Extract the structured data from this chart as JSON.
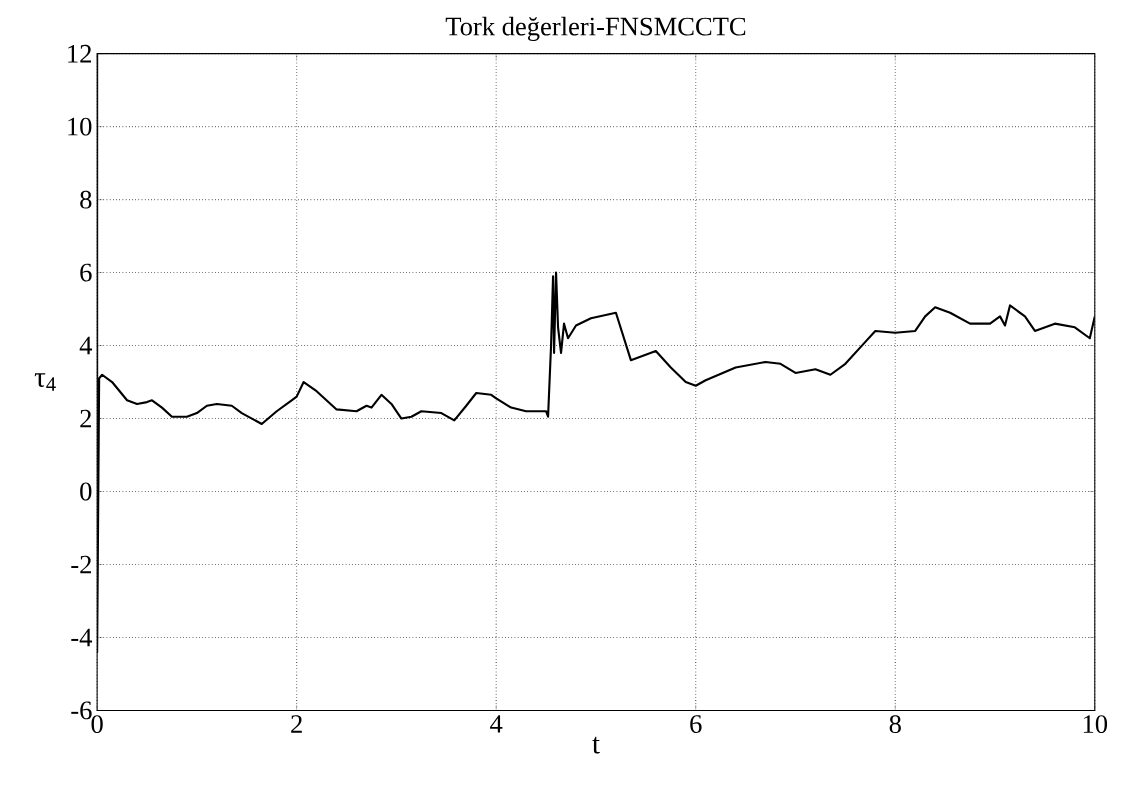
{
  "chart_data": {
    "type": "line",
    "title": "Tork değerleri-FNSMCCTC",
    "xlabel": "t",
    "ylabel": "τ$_{4}$",
    "xlim": [
      0,
      10
    ],
    "ylim": [
      -6,
      12
    ],
    "xticks": [
      0,
      2,
      4,
      6,
      8,
      10
    ],
    "yticks": [
      -6,
      -4,
      -2,
      0,
      2,
      4,
      6,
      8,
      10,
      12
    ],
    "grid": true,
    "line_style": "solid",
    "series": [
      {
        "color": "#000000",
        "x": [
          0,
          0,
          0.02,
          0.05,
          0.15,
          0.3,
          0.4,
          0.5,
          0.55,
          0.65,
          0.75,
          0.9,
          1.0,
          1.1,
          1.2,
          1.35,
          1.45,
          1.65,
          1.8,
          1.95,
          2.0,
          2.07,
          2.2,
          2.4,
          2.6,
          2.7,
          2.75,
          2.85,
          2.95,
          3.05,
          3.15,
          3.25,
          3.45,
          3.58,
          3.7,
          3.8,
          3.95,
          4.0,
          4.15,
          4.3,
          4.5,
          4.52,
          4.55,
          4.57,
          4.58,
          4.6,
          4.62,
          4.65,
          4.68,
          4.72,
          4.8,
          4.95,
          5.2,
          5.35,
          5.6,
          5.75,
          5.9,
          6.0,
          6.1,
          6.4,
          6.7,
          6.85,
          7.0,
          7.2,
          7.35,
          7.5,
          7.7,
          7.8,
          8.0,
          8.2,
          8.3,
          8.4,
          8.55,
          8.75,
          8.95,
          9.05,
          9.1,
          9.15,
          9.3,
          9.4,
          9.6,
          9.8,
          9.95,
          10.0
        ],
        "values": [
          12,
          -4.4,
          3.1,
          3.2,
          3.0,
          2.5,
          2.4,
          2.45,
          2.5,
          2.3,
          2.05,
          2.05,
          2.15,
          2.35,
          2.4,
          2.35,
          2.15,
          1.85,
          2.2,
          2.5,
          2.6,
          3.0,
          2.75,
          2.25,
          2.2,
          2.35,
          2.3,
          2.65,
          2.4,
          2.0,
          2.05,
          2.2,
          2.15,
          1.95,
          2.35,
          2.7,
          2.65,
          2.55,
          2.3,
          2.2,
          2.2,
          2.05,
          4.0,
          5.9,
          3.8,
          6.0,
          4.5,
          3.8,
          4.6,
          4.2,
          4.55,
          4.75,
          4.9,
          3.6,
          3.85,
          3.4,
          3.0,
          2.9,
          3.05,
          3.4,
          3.55,
          3.5,
          3.25,
          3.35,
          3.2,
          3.5,
          4.1,
          4.4,
          4.35,
          4.4,
          4.8,
          5.05,
          4.9,
          4.6,
          4.6,
          4.8,
          4.55,
          5.1,
          4.8,
          4.4,
          4.6,
          4.5,
          4.2,
          4.8
        ]
      }
    ]
  }
}
